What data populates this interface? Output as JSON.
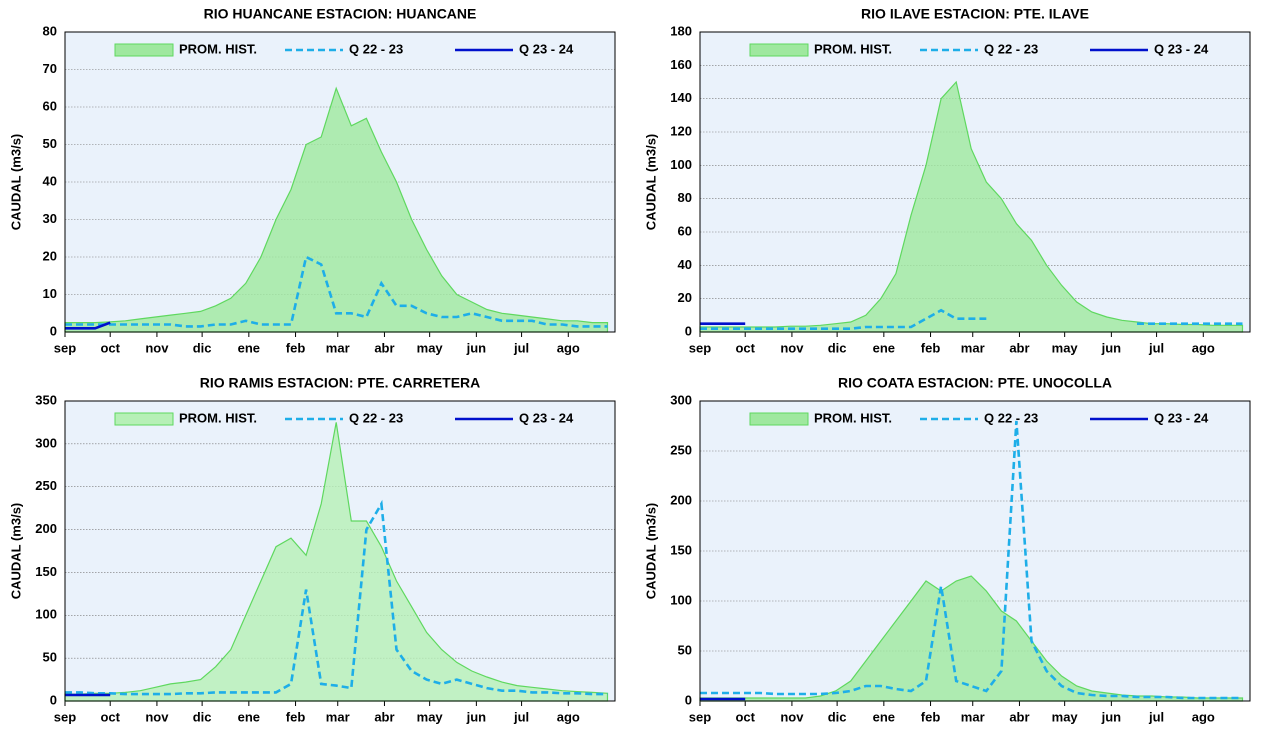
{
  "chart_data": [
    {
      "type": "line",
      "title": "RIO HUANCANE ESTACION: HUANCANE",
      "y_label": "CAUDAL (m3/s)",
      "x": [
        0,
        10,
        20,
        30,
        40,
        50,
        60,
        70,
        80,
        90,
        100,
        110,
        120,
        130,
        140,
        150,
        160,
        170,
        180,
        190,
        200,
        210,
        220,
        230,
        240,
        250,
        260,
        270,
        280,
        290,
        300,
        310,
        320,
        330,
        340,
        350,
        360
      ],
      "xlim": [
        0,
        365
      ],
      "xticks": [
        {
          "value": 0,
          "label": "sep"
        },
        {
          "value": 30,
          "label": "oct"
        },
        {
          "value": 61,
          "label": "nov"
        },
        {
          "value": 91,
          "label": "dic"
        },
        {
          "value": 122,
          "label": "ene"
        },
        {
          "value": 153,
          "label": "feb"
        },
        {
          "value": 181,
          "label": "mar"
        },
        {
          "value": 212,
          "label": "abr"
        },
        {
          "value": 242,
          "label": "may"
        },
        {
          "value": 273,
          "label": "jun"
        },
        {
          "value": 303,
          "label": "jul"
        },
        {
          "value": 334,
          "label": "ago"
        }
      ],
      "ylim": [
        0,
        80
      ],
      "yticks": [
        0,
        10,
        20,
        30,
        40,
        50,
        60,
        70,
        80
      ],
      "grid": true,
      "series": [
        {
          "name": "PROM. HIST.",
          "style": "area",
          "color": "#9fe89f",
          "values": [
            2.5,
            2.5,
            2.5,
            2.7,
            3,
            3.5,
            4,
            4.5,
            5,
            5.5,
            7,
            9,
            13,
            20,
            30,
            38,
            50,
            52,
            65,
            55,
            57,
            48,
            40,
            30,
            22,
            15,
            10,
            8,
            6,
            5,
            4.5,
            4,
            3.5,
            3,
            3,
            2.5,
            2.5
          ]
        },
        {
          "name": "Q 22 - 23",
          "style": "dashed",
          "color": "#1eaee8",
          "values": [
            2,
            2,
            2,
            2,
            2,
            2,
            2,
            2,
            1.5,
            1.5,
            2,
            2,
            3,
            2,
            2,
            2,
            20,
            18,
            5,
            5,
            4,
            13,
            7,
            7,
            5,
            4,
            4,
            5,
            4,
            3,
            3,
            3,
            2,
            2,
            1.5,
            1.5,
            1.5
          ]
        },
        {
          "name": "Q 23 - 24",
          "style": "solid",
          "color": "#0010cc",
          "values": [
            1,
            1,
            1,
            2.5,
            null,
            null,
            null,
            null,
            null,
            null,
            null,
            null,
            null,
            null,
            null,
            null,
            null,
            null,
            null,
            null,
            null,
            null,
            null,
            null,
            null,
            null,
            null,
            null,
            null,
            null,
            null,
            null,
            null,
            null,
            null,
            null,
            null
          ]
        }
      ]
    },
    {
      "type": "line",
      "title": "RIO ILAVE ESTACION: PTE. ILAVE",
      "y_label": "CAUDAL (m3/s)",
      "x": [
        0,
        10,
        20,
        30,
        40,
        50,
        60,
        70,
        80,
        90,
        100,
        110,
        120,
        130,
        140,
        150,
        160,
        170,
        180,
        190,
        200,
        210,
        220,
        230,
        240,
        250,
        260,
        270,
        280,
        290,
        300,
        310,
        320,
        330,
        340,
        350,
        360
      ],
      "xlim": [
        0,
        365
      ],
      "xticks": [
        {
          "value": 0,
          "label": "sep"
        },
        {
          "value": 30,
          "label": "oct"
        },
        {
          "value": 61,
          "label": "nov"
        },
        {
          "value": 91,
          "label": "dic"
        },
        {
          "value": 122,
          "label": "ene"
        },
        {
          "value": 153,
          "label": "feb"
        },
        {
          "value": 181,
          "label": "mar"
        },
        {
          "value": 212,
          "label": "abr"
        },
        {
          "value": 242,
          "label": "may"
        },
        {
          "value": 273,
          "label": "jun"
        },
        {
          "value": 303,
          "label": "jul"
        },
        {
          "value": 334,
          "label": "ago"
        }
      ],
      "ylim": [
        0,
        180
      ],
      "yticks": [
        0,
        20,
        40,
        60,
        80,
        100,
        120,
        140,
        160,
        180
      ],
      "grid": true,
      "series": [
        {
          "name": "PROM. HIST.",
          "style": "area",
          "color": "#9fe89f",
          "values": [
            3,
            3,
            3,
            3,
            3,
            3,
            3.5,
            3.5,
            4,
            5,
            6,
            10,
            20,
            35,
            70,
            100,
            140,
            150,
            110,
            90,
            80,
            65,
            55,
            40,
            28,
            18,
            12,
            9,
            7,
            6,
            5,
            5,
            4.5,
            4.5,
            4,
            4,
            4
          ]
        },
        {
          "name": "Q 22 - 23",
          "style": "dashed",
          "color": "#1eaee8",
          "values": [
            2,
            2,
            2,
            2,
            2,
            2,
            2,
            2,
            2,
            2,
            2,
            3,
            3,
            3,
            3,
            8,
            13,
            8,
            8,
            8,
            null,
            null,
            null,
            null,
            null,
            null,
            null,
            null,
            null,
            5,
            5,
            5,
            5,
            5,
            5,
            5,
            5
          ]
        },
        {
          "name": "Q 23 - 24",
          "style": "solid",
          "color": "#0010cc",
          "values": [
            5,
            5,
            5,
            5,
            null,
            null,
            null,
            null,
            null,
            null,
            null,
            null,
            null,
            null,
            null,
            null,
            null,
            null,
            null,
            null,
            null,
            null,
            null,
            null,
            null,
            null,
            null,
            null,
            null,
            null,
            null,
            null,
            null,
            null,
            null,
            null,
            null
          ]
        }
      ]
    },
    {
      "type": "line",
      "title": "RIO RAMIS ESTACION: PTE. CARRETERA",
      "y_label": "CAUDAL (m3/s)",
      "x": [
        0,
        10,
        20,
        30,
        40,
        50,
        60,
        70,
        80,
        90,
        100,
        110,
        120,
        130,
        140,
        150,
        160,
        170,
        180,
        190,
        200,
        210,
        220,
        230,
        240,
        250,
        260,
        270,
        280,
        290,
        300,
        310,
        320,
        330,
        340,
        350,
        360
      ],
      "xlim": [
        0,
        365
      ],
      "xticks": [
        {
          "value": 0,
          "label": "sep"
        },
        {
          "value": 30,
          "label": "oct"
        },
        {
          "value": 61,
          "label": "nov"
        },
        {
          "value": 91,
          "label": "dic"
        },
        {
          "value": 122,
          "label": "ene"
        },
        {
          "value": 153,
          "label": "feb"
        },
        {
          "value": 181,
          "label": "mar"
        },
        {
          "value": 212,
          "label": "abr"
        },
        {
          "value": 242,
          "label": "may"
        },
        {
          "value": 273,
          "label": "jun"
        },
        {
          "value": 303,
          "label": "jul"
        },
        {
          "value": 334,
          "label": "ago"
        }
      ],
      "ylim": [
        0,
        350
      ],
      "yticks": [
        0,
        50,
        100,
        150,
        200,
        250,
        300,
        350
      ],
      "grid": true,
      "series": [
        {
          "name": "PROM. HIST.",
          "style": "area",
          "color": "#b6f0b6",
          "values": [
            8,
            8,
            9,
            9,
            10,
            12,
            16,
            20,
            22,
            25,
            40,
            60,
            100,
            140,
            180,
            190,
            170,
            230,
            325,
            210,
            210,
            180,
            140,
            110,
            80,
            60,
            45,
            35,
            28,
            22,
            18,
            16,
            14,
            12,
            11,
            10,
            9
          ]
        },
        {
          "name": "Q 22 - 23",
          "style": "dashed",
          "color": "#1eaee8",
          "values": [
            10,
            10,
            9,
            9,
            8,
            8,
            8,
            8,
            9,
            9,
            10,
            10,
            10,
            10,
            10,
            20,
            130,
            20,
            18,
            15,
            200,
            230,
            60,
            35,
            25,
            20,
            25,
            20,
            15,
            12,
            12,
            10,
            10,
            9,
            9,
            8,
            8
          ]
        },
        {
          "name": "Q 23 - 24",
          "style": "solid",
          "color": "#0010cc",
          "values": [
            7,
            7,
            7,
            7,
            null,
            null,
            null,
            null,
            null,
            null,
            null,
            null,
            null,
            null,
            null,
            null,
            null,
            null,
            null,
            null,
            null,
            null,
            null,
            null,
            null,
            null,
            null,
            null,
            null,
            null,
            null,
            null,
            null,
            null,
            null,
            null,
            null
          ]
        }
      ]
    },
    {
      "type": "line",
      "title": "RIO COATA ESTACION: PTE. UNOCOLLA",
      "y_label": "CAUDAL (m3/s)",
      "x": [
        0,
        10,
        20,
        30,
        40,
        50,
        60,
        70,
        80,
        90,
        100,
        110,
        120,
        130,
        140,
        150,
        160,
        170,
        180,
        190,
        200,
        210,
        220,
        230,
        240,
        250,
        260,
        270,
        280,
        290,
        300,
        310,
        320,
        330,
        340,
        350,
        360
      ],
      "xlim": [
        0,
        365
      ],
      "xticks": [
        {
          "value": 0,
          "label": "sep"
        },
        {
          "value": 30,
          "label": "oct"
        },
        {
          "value": 61,
          "label": "nov"
        },
        {
          "value": 91,
          "label": "dic"
        },
        {
          "value": 122,
          "label": "ene"
        },
        {
          "value": 153,
          "label": "feb"
        },
        {
          "value": 181,
          "label": "mar"
        },
        {
          "value": 212,
          "label": "abr"
        },
        {
          "value": 242,
          "label": "may"
        },
        {
          "value": 273,
          "label": "jun"
        },
        {
          "value": 303,
          "label": "jul"
        },
        {
          "value": 334,
          "label": "ago"
        }
      ],
      "ylim": [
        0,
        300
      ],
      "yticks": [
        0,
        50,
        100,
        150,
        200,
        250,
        300
      ],
      "grid": true,
      "series": [
        {
          "name": "PROM. HIST.",
          "style": "area",
          "color": "#9fe89f",
          "values": [
            3,
            3,
            3,
            3,
            3,
            3,
            3,
            3,
            5,
            10,
            20,
            40,
            60,
            80,
            100,
            120,
            110,
            120,
            125,
            110,
            90,
            80,
            60,
            40,
            25,
            15,
            10,
            8,
            6,
            5,
            5,
            4,
            4,
            3,
            3,
            3,
            3
          ]
        },
        {
          "name": "Q 22 - 23",
          "style": "dashed",
          "color": "#1eaee8",
          "values": [
            8,
            8,
            8,
            8,
            8,
            7,
            7,
            7,
            7,
            8,
            10,
            15,
            15,
            12,
            10,
            20,
            115,
            20,
            15,
            10,
            30,
            280,
            60,
            30,
            15,
            8,
            6,
            5,
            5,
            4,
            4,
            4,
            3,
            3,
            3,
            3,
            3
          ]
        },
        {
          "name": "Q 23 - 24",
          "style": "solid",
          "color": "#0010cc",
          "values": [
            2,
            2,
            2,
            2,
            null,
            null,
            null,
            null,
            null,
            null,
            null,
            null,
            null,
            null,
            null,
            null,
            null,
            null,
            null,
            null,
            null,
            null,
            null,
            null,
            null,
            null,
            null,
            null,
            null,
            null,
            null,
            null,
            null,
            null,
            null,
            null,
            null
          ]
        }
      ]
    }
  ]
}
